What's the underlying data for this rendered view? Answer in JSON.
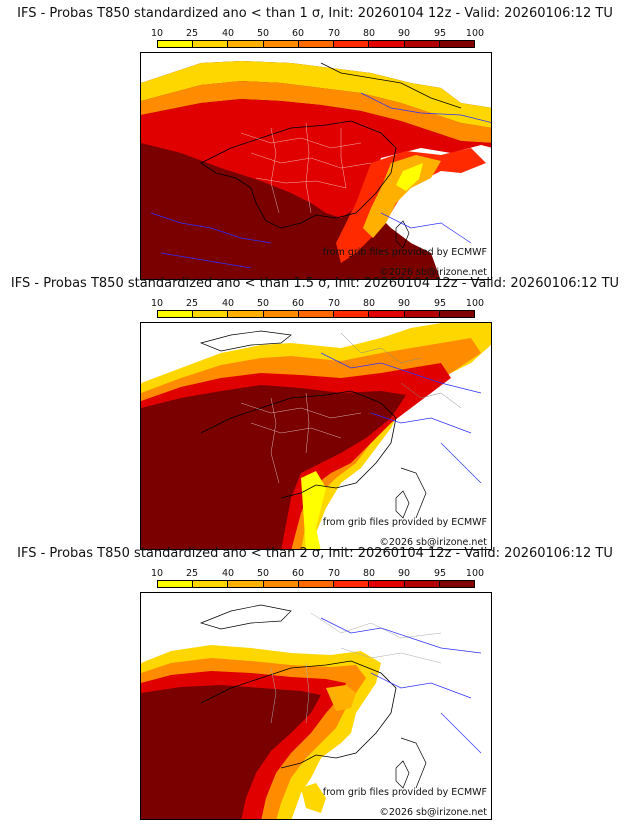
{
  "colorbar": {
    "ticks": [
      "10",
      "25",
      "40",
      "50",
      "60",
      "70",
      "80",
      "90",
      "95",
      "100"
    ],
    "colors": [
      "#ffff00",
      "#ffd700",
      "#ffb000",
      "#ff8c00",
      "#ff6a00",
      "#ff2a00",
      "#e00000",
      "#b00000",
      "#800000"
    ]
  },
  "panels": [
    {
      "title": "IFS - Probas T850  standardized ano < than 1 σ, Init: 20260104 12z - Valid: 20260106:12 TU",
      "credit_grib": "from grib files provided by ECMWF",
      "credit_copy": "©2026 sb@irizone.net"
    },
    {
      "title": "IFS - Probas T850  standardized ano < than 1.5 σ, Init: 20260104 12z - Valid: 20260106:12 TU",
      "credit_grib": "from grib files provided by ECMWF",
      "credit_copy": "©2026 sb@irizone.net"
    },
    {
      "title": "IFS - Probas T850  standardized ano < than 2 σ, Init: 20260104 12z - Valid: 20260106:12 TU",
      "credit_grib": "from grib files provided by ECMWF",
      "credit_copy": "©2026 sb@irizone.net"
    }
  ]
}
